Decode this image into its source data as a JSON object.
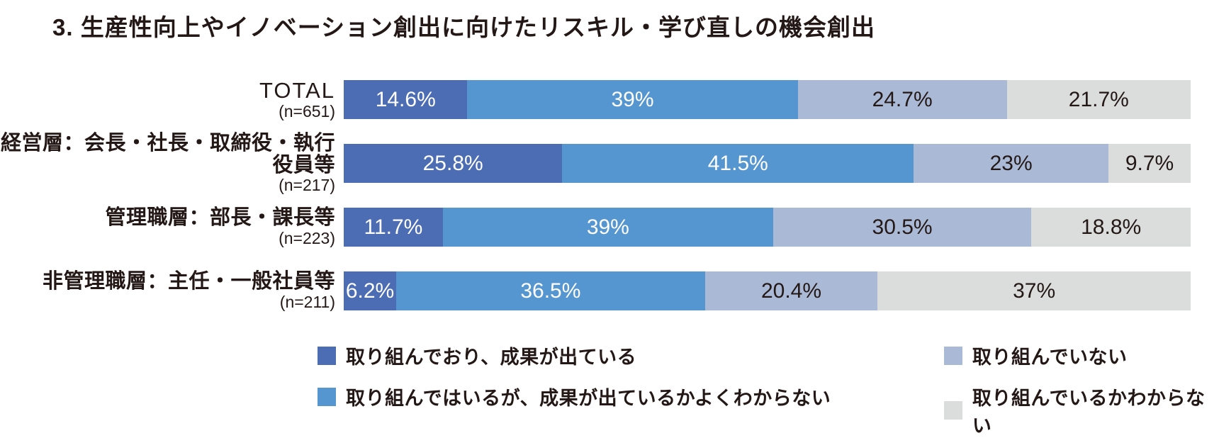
{
  "title": "3. 生産性向上やイノベーション創出に向けたリスキル・学び直しの機会創出",
  "text_color": "#231815",
  "chart_data": {
    "type": "bar",
    "orientation": "horizontal-stacked",
    "xlim": [
      0,
      100
    ],
    "unit": "%",
    "categories": [
      {
        "label": "TOTAL",
        "n": "(n=651)",
        "latin": true
      },
      {
        "label": "経営層：会長・社長・取締役・執行役員等",
        "n": "(n=217)",
        "latin": false
      },
      {
        "label": "管理職層：部長・課長等",
        "n": "(n=223)",
        "latin": false
      },
      {
        "label": "非管理職層：主任・一般社員等",
        "n": "(n=211)",
        "latin": false
      }
    ],
    "series": [
      {
        "name": "取り組んでおり、成果が出ている",
        "color": "#4C6CB3",
        "label_style": "light",
        "values": [
          14.6,
          25.8,
          11.7,
          6.2
        ],
        "labels": [
          "14.6%",
          "25.8%",
          "11.7%",
          "6.2%"
        ]
      },
      {
        "name": "取り組んではいるが、成果が出ているかよくわからない",
        "color": "#5596D0",
        "label_style": "light",
        "values": [
          39,
          41.5,
          39,
          36.5
        ],
        "labels": [
          "39%",
          "41.5%",
          "39%",
          "36.5%"
        ]
      },
      {
        "name": "取り組んでいない",
        "color": "#AAB9D6",
        "label_style": "dark",
        "values": [
          24.7,
          23,
          30.5,
          20.4
        ],
        "labels": [
          "24.7%",
          "23%",
          "30.5%",
          "20.4%"
        ]
      },
      {
        "name": "取り組んでいるかわからない",
        "color": "#DBDDDC",
        "label_style": "dark",
        "values": [
          21.7,
          9.7,
          18.8,
          37
        ],
        "labels": [
          "21.7%",
          "9.7%",
          "18.8%",
          "37%"
        ]
      }
    ],
    "legend_position": "bottom"
  }
}
